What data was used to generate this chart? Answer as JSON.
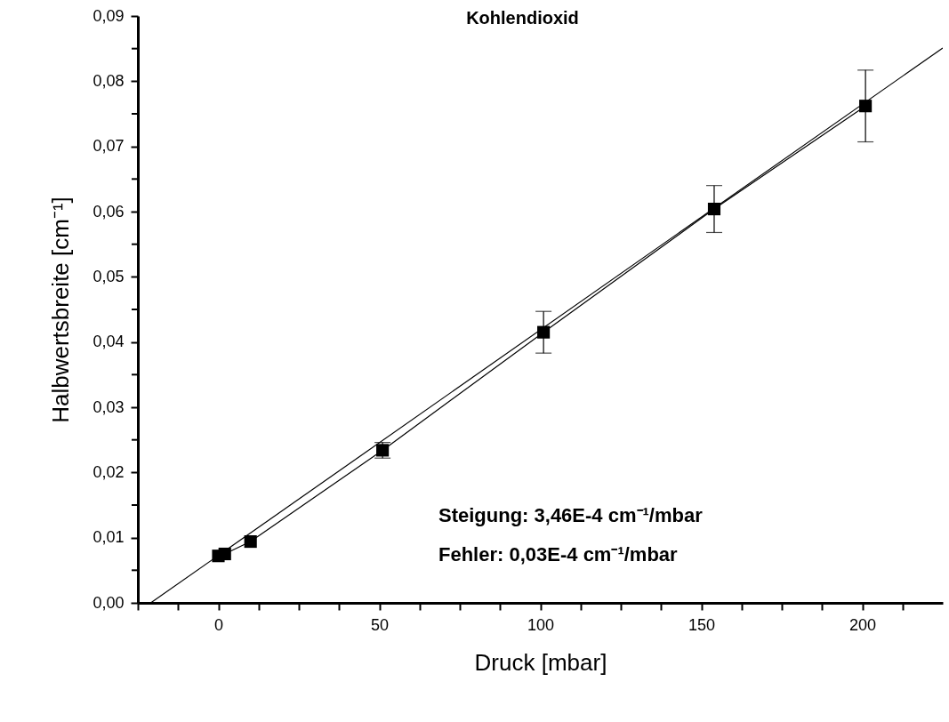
{
  "chart_data": {
    "type": "line",
    "title": "Kohlendioxid",
    "xlabel": "Druck [mbar]",
    "ylabel": "Halbwertsbreite [cm⁻¹]",
    "annotations": [
      "Steigung: 3,46E-4 cm⁻¹/mbar",
      "Fehler:      0,03E-4 cm⁻¹/mbar"
    ],
    "series": [
      {
        "color": "#000000",
        "marker": "square",
        "x": [
          0,
          2,
          10,
          51,
          101,
          154,
          201
        ],
        "values": [
          0.0072,
          0.0075,
          0.0094,
          0.0234,
          0.0415,
          0.0604,
          0.0762
        ],
        "errors": [
          null,
          null,
          null,
          0.0012,
          0.0032,
          0.0036,
          0.0055
        ]
      },
      {
        "color": "#000000",
        "x": [
          -21,
          225
        ],
        "values": [
          0,
          0.0851
        ]
      }
    ],
    "xlim": [
      -25,
      225
    ],
    "xticks": [
      {
        "value": -25,
        "label": null
      },
      {
        "value": -12.5,
        "label": null
      },
      0,
      {
        "value": 12.5,
        "label": null
      },
      {
        "value": 25,
        "label": null
      },
      {
        "value": 37.5,
        "label": null
      },
      50,
      {
        "value": 62.5,
        "label": null
      },
      {
        "value": 75,
        "label": null
      },
      {
        "value": 87.5,
        "label": null
      },
      100,
      {
        "value": 112.5,
        "label": null
      },
      {
        "value": 125,
        "label": null
      },
      {
        "value": 137.5,
        "label": null
      },
      150,
      {
        "value": 162.5,
        "label": null
      },
      {
        "value": 175,
        "label": null
      },
      {
        "value": 187.5,
        "label": null
      },
      200,
      {
        "value": 212.5,
        "label": null
      }
    ],
    "ylim": [
      0,
      0.09
    ],
    "yticks": [
      {
        "value": 0,
        "label": "0,00"
      },
      {
        "value": 0.005,
        "label": null
      },
      {
        "value": 0.01,
        "label": "0,01"
      },
      {
        "value": 0.015,
        "label": null
      },
      {
        "value": 0.02,
        "label": "0,02"
      },
      {
        "value": 0.025,
        "label": null
      },
      {
        "value": 0.03,
        "label": "0,03"
      },
      {
        "value": 0.035,
        "label": null
      },
      {
        "value": 0.04,
        "label": "0,04"
      },
      {
        "value": 0.045,
        "label": null
      },
      {
        "value": 0.05,
        "label": "0,05"
      },
      {
        "value": 0.055,
        "label": null
      },
      {
        "value": 0.06,
        "label": "0,06"
      },
      {
        "value": 0.065,
        "label": null
      },
      {
        "value": 0.07,
        "label": "0,07"
      },
      {
        "value": 0.075,
        "label": null
      },
      {
        "value": 0.08,
        "label": "0,08"
      },
      {
        "value": 0.085,
        "label": null
      },
      {
        "value": 0.09,
        "label": "0,09"
      }
    ],
    "grid": false
  }
}
